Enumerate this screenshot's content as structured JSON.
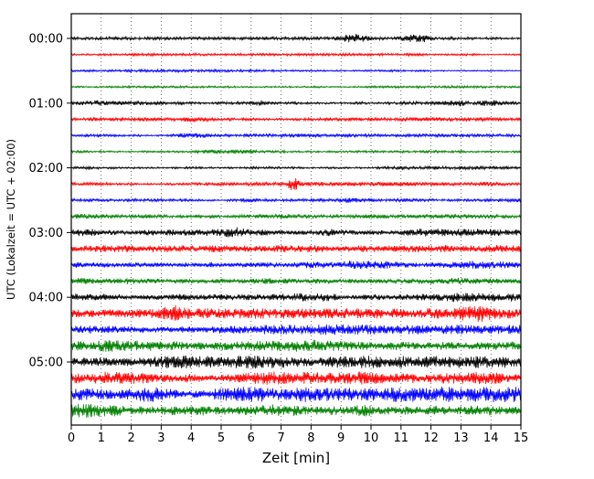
{
  "chart_data": {
    "type": "line",
    "subtype": "helicorder-seismogram",
    "title": "",
    "xlabel": "Zeit  [min]",
    "ylabel": "UTC (Lokalzeit = UTC + 02:00)",
    "xlim": [
      0,
      15
    ],
    "x_ticks": [
      0,
      1,
      2,
      3,
      4,
      5,
      6,
      7,
      8,
      9,
      10,
      11,
      12,
      13,
      14,
      15
    ],
    "y_tick_labels": [
      "00:00",
      "01:00",
      "02:00",
      "03:00",
      "04:00",
      "05:00"
    ],
    "minutes_per_line": 15,
    "lines_per_hour": 4,
    "grid": {
      "vertical_dotted": true,
      "color": "#333333"
    },
    "colors_cycle": [
      "#000000",
      "#ff0000",
      "#0000ff",
      "#008000"
    ],
    "traces": [
      {
        "start": "00:00",
        "color": "#000000",
        "amp": 1.3,
        "bursts": [
          {
            "t": 9.4,
            "w": 0.45,
            "g": 3.2
          },
          {
            "t": 11.3,
            "w": 0.35,
            "g": 3.0
          },
          {
            "t": 11.8,
            "w": 0.25,
            "g": 2.2
          }
        ]
      },
      {
        "start": "00:15",
        "color": "#ff0000",
        "amp": 1.1,
        "bursts": []
      },
      {
        "start": "00:30",
        "color": "#0000ff",
        "amp": 1.1,
        "bursts": []
      },
      {
        "start": "00:45",
        "color": "#008000",
        "amp": 1.1,
        "bursts": []
      },
      {
        "start": "01:00",
        "color": "#000000",
        "amp": 1.8,
        "bursts": [
          {
            "t": 0.7,
            "w": 0.3,
            "g": 1.8
          },
          {
            "t": 6.3,
            "w": 0.3,
            "g": 1.9
          },
          {
            "t": 12.9,
            "w": 0.35,
            "g": 2.4
          },
          {
            "t": 13.9,
            "w": 0.4,
            "g": 2.4
          }
        ]
      },
      {
        "start": "01:15",
        "color": "#ff0000",
        "amp": 1.6,
        "bursts": [
          {
            "t": 4.1,
            "w": 0.5,
            "g": 2.0
          }
        ]
      },
      {
        "start": "01:30",
        "color": "#0000ff",
        "amp": 1.4,
        "bursts": [
          {
            "t": 3.9,
            "w": 0.6,
            "g": 2.0
          }
        ]
      },
      {
        "start": "01:45",
        "color": "#008000",
        "amp": 1.4,
        "bursts": [
          {
            "t": 5.0,
            "w": 0.8,
            "g": 1.8
          }
        ]
      },
      {
        "start": "02:00",
        "color": "#000000",
        "amp": 1.4,
        "bursts": []
      },
      {
        "start": "02:15",
        "color": "#ff0000",
        "amp": 1.7,
        "bursts": [
          {
            "t": 7.4,
            "w": 0.15,
            "g": 5.0
          },
          {
            "t": 13.9,
            "w": 0.3,
            "g": 2.0
          }
        ]
      },
      {
        "start": "02:30",
        "color": "#0000ff",
        "amp": 1.7,
        "bursts": [
          {
            "t": 5.9,
            "w": 0.5,
            "g": 2.0
          },
          {
            "t": 9.6,
            "w": 0.6,
            "g": 1.8
          }
        ]
      },
      {
        "start": "02:45",
        "color": "#008000",
        "amp": 2.4,
        "bursts": []
      },
      {
        "start": "03:00",
        "color": "#000000",
        "amp": 3.4,
        "bursts": [
          {
            "t": 0.5,
            "w": 0.4,
            "g": 1.6
          },
          {
            "t": 5.6,
            "w": 0.4,
            "g": 1.5
          },
          {
            "t": 8.6,
            "w": 0.3,
            "g": 1.6
          }
        ]
      },
      {
        "start": "03:15",
        "color": "#ff0000",
        "amp": 2.9,
        "bursts": []
      },
      {
        "start": "03:30",
        "color": "#0000ff",
        "amp": 3.3,
        "bursts": []
      },
      {
        "start": "03:45",
        "color": "#008000",
        "amp": 3.3,
        "bursts": []
      },
      {
        "start": "04:00",
        "color": "#000000",
        "amp": 3.8,
        "bursts": []
      },
      {
        "start": "04:15",
        "color": "#ff0000",
        "amp": 4.2,
        "bursts": [
          {
            "t": 3.4,
            "w": 0.3,
            "g": 1.6
          },
          {
            "t": 13.5,
            "w": 0.5,
            "g": 1.7
          }
        ]
      },
      {
        "start": "04:30",
        "color": "#0000ff",
        "amp": 4.8,
        "bursts": []
      },
      {
        "start": "04:45",
        "color": "#008000",
        "amp": 4.8,
        "bursts": []
      },
      {
        "start": "05:00",
        "color": "#000000",
        "amp": 5.2,
        "bursts": []
      },
      {
        "start": "05:15",
        "color": "#ff0000",
        "amp": 5.2,
        "bursts": []
      },
      {
        "start": "05:30",
        "color": "#0000ff",
        "amp": 6.2,
        "bursts": []
      },
      {
        "start": "05:45",
        "color": "#008000",
        "amp": 6.8,
        "bursts": []
      }
    ]
  }
}
